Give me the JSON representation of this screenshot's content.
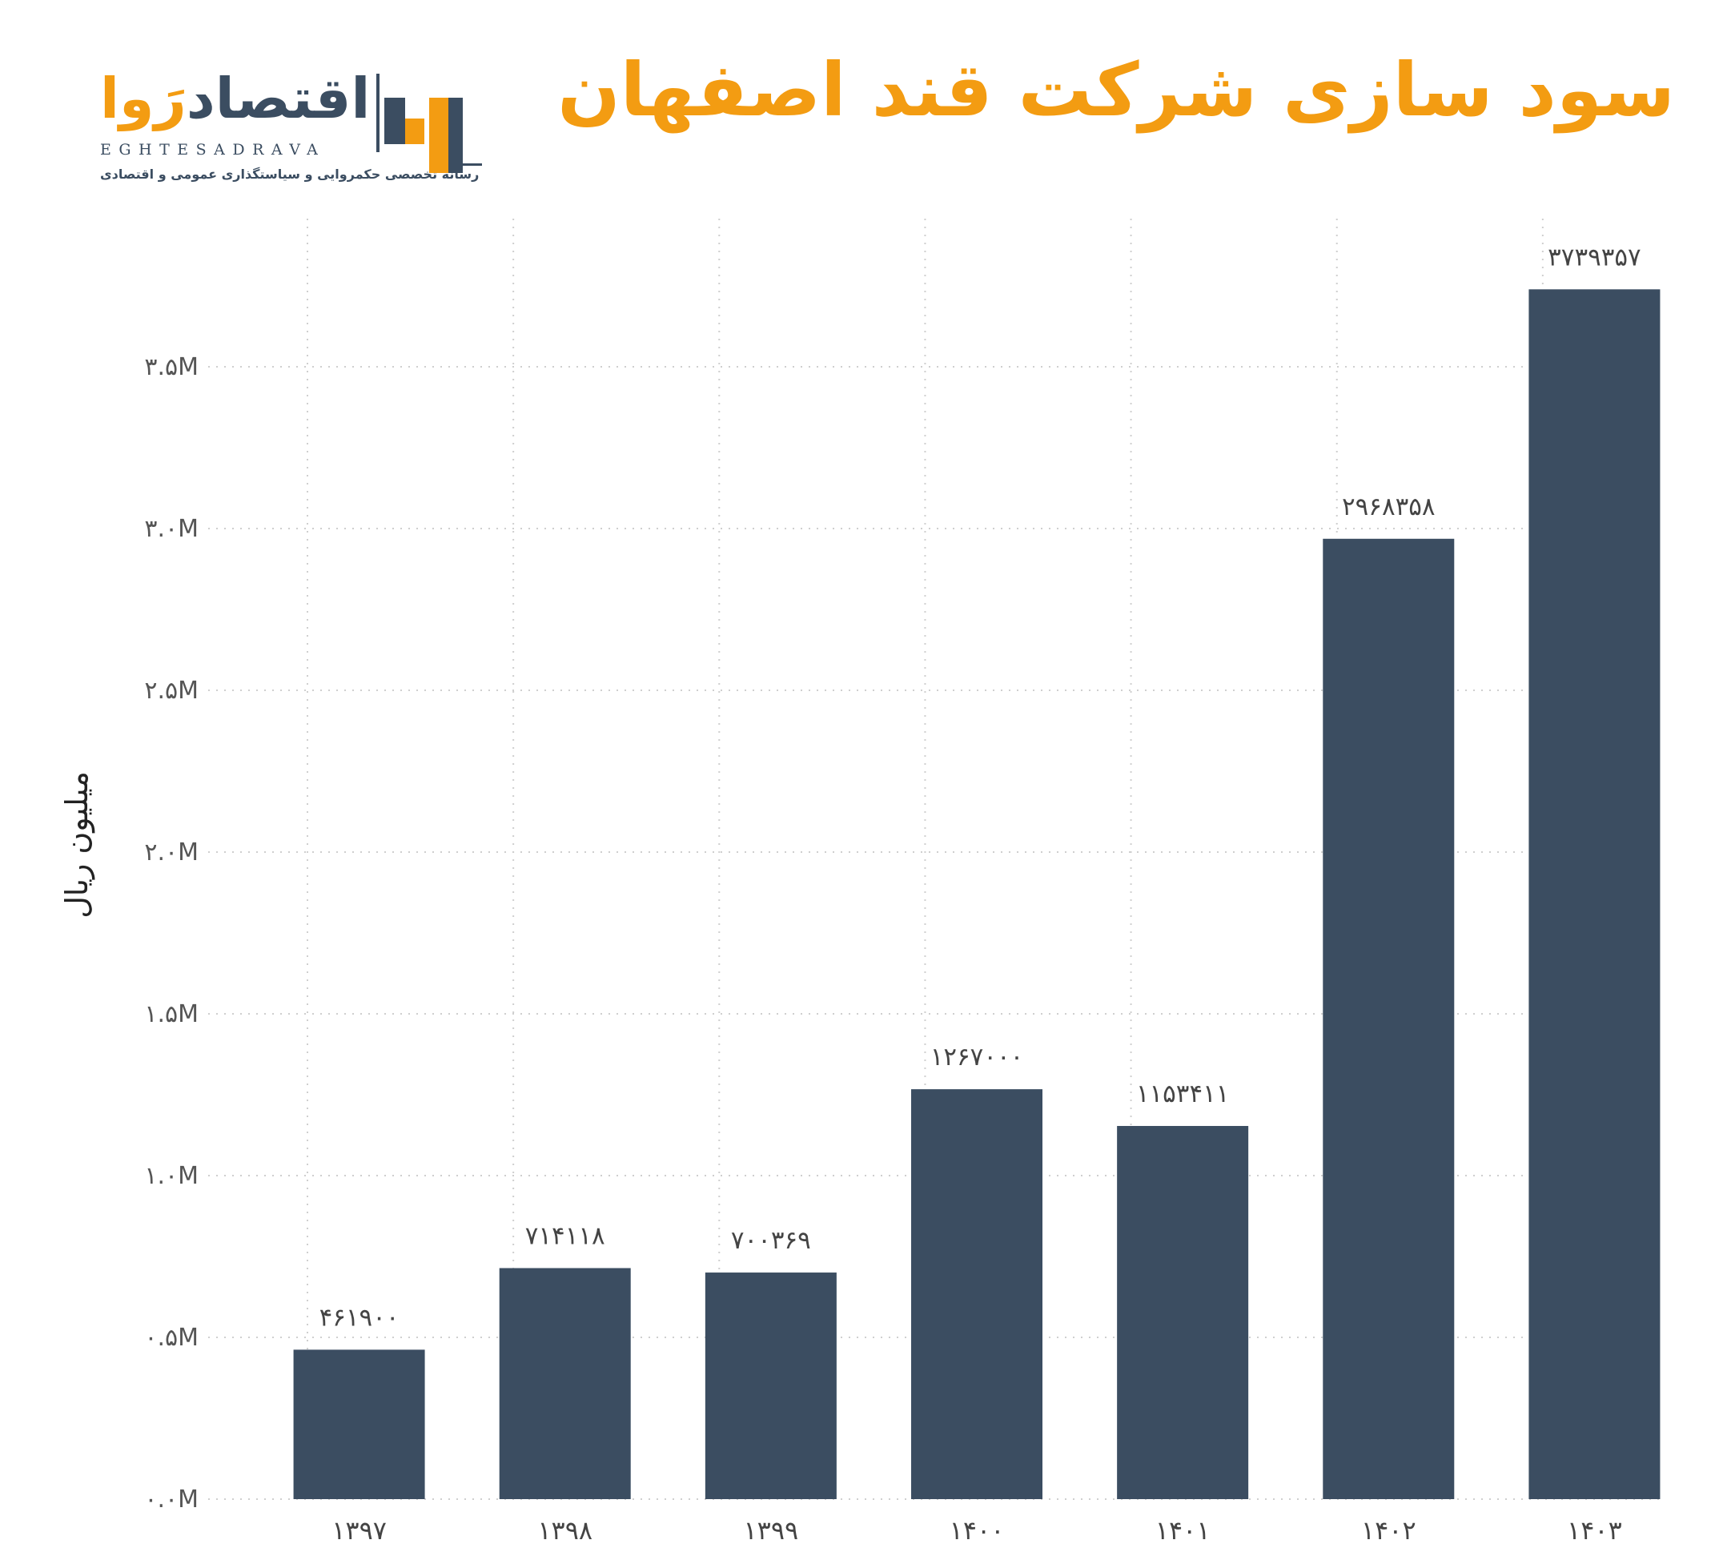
{
  "title": "سود سازی شرکت قند اصفهان",
  "logo": {
    "word_main": "اقتصاد",
    "word_accent": "رَوا",
    "latin": "EGHTESADRAVA",
    "tagline": "رسانه تخصصی حکمروایی و سیاستگذاری عمومی و اقتصادی"
  },
  "colors": {
    "bar": "#3B4D61",
    "title": "#F39C12",
    "grid": "#cfcfcf"
  },
  "chart_data": {
    "type": "bar",
    "ylabel": "میلیون ریال",
    "categories": [
      "۱۳۹۷",
      "۱۳۹۸",
      "۱۳۹۹",
      "۱۴۰۰",
      "۱۴۰۱",
      "۱۴۰۲",
      "۱۴۰۳"
    ],
    "values": [
      461900,
      714118,
      700369,
      1267000,
      1153411,
      2968358,
      3739357
    ],
    "value_labels": [
      "۴۶۱۹۰۰",
      "۷۱۴۱۱۸",
      "۷۰۰۳۶۹",
      "۱۲۶۷۰۰۰",
      "۱۱۵۳۴۱۱",
      "۲۹۶۸۳۵۸",
      "۳۷۳۹۳۵۷"
    ],
    "yticks": [
      0,
      500000,
      1000000,
      1500000,
      2000000,
      2500000,
      3000000,
      3500000
    ],
    "ytick_labels": [
      "۰.۰M",
      "۰.۵M",
      "۱.۰M",
      "۱.۵M",
      "۲.۰M",
      "۲.۵M",
      "۳.۰M",
      "۳.۵M"
    ],
    "ylim": [
      0,
      3500000
    ],
    "grid": true,
    "legend": "none"
  }
}
